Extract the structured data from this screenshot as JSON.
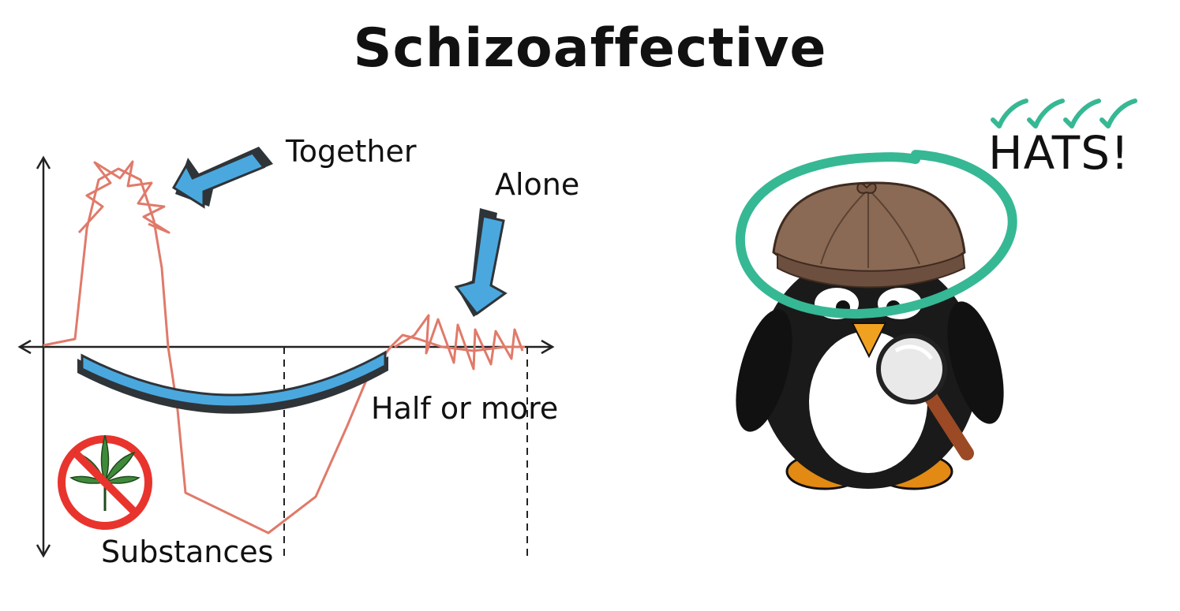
{
  "title": "Schizoaffective",
  "labels": {
    "together": "Together",
    "alone": "Alone",
    "half_or_more": "Half or more",
    "substances": "Substances",
    "hats": "HATS!"
  },
  "colors": {
    "mood_line": "#e07a6a",
    "arrow_fill": "#4aa8df",
    "arrow_outline": "#2f3438",
    "accent_green": "#36b894",
    "hat_brown": "#8a6a55",
    "no_sign_red": "#e8342d",
    "leaf_green": "#3f8a3a"
  },
  "icons": [
    "no-cannabis-icon",
    "penguin-detective-icon",
    "magnifying-glass-icon",
    "checkmark-icon"
  ]
}
